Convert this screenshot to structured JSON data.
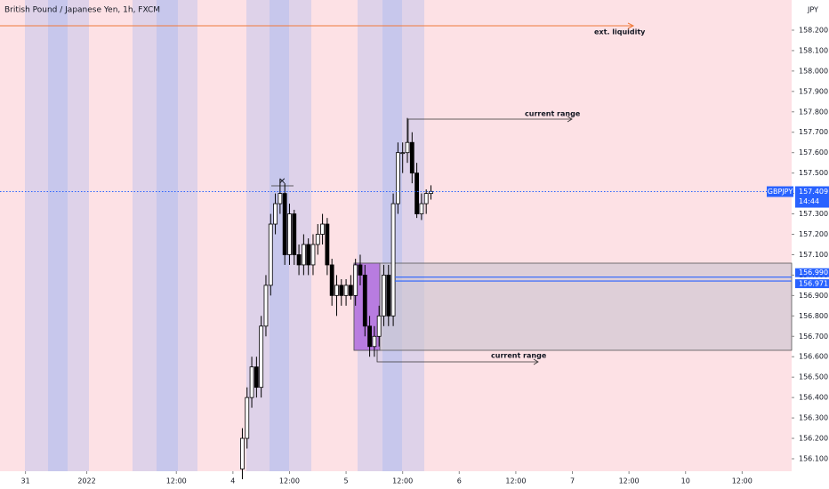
{
  "chart_data": {
    "type": "candlestick",
    "title": "British Pound / Japanese Yen, 1h, FXCM",
    "currency": "JPY",
    "symbol": "GBPJPY",
    "last_price": 157.409,
    "countdown": "14:44",
    "levels": [
      {
        "value": 156.99,
        "label": "156.990"
      },
      {
        "value": 156.971,
        "label": "156.971"
      }
    ],
    "annotations": [
      "ext. liquidity",
      "current range",
      "current range"
    ],
    "x": [
      2,
      3,
      4,
      5,
      6,
      7,
      8,
      9,
      10,
      11,
      12,
      13,
      14,
      15,
      16,
      17,
      18,
      19,
      20,
      21,
      22,
      23,
      24,
      25,
      26,
      27,
      28,
      29,
      30,
      31,
      32,
      33,
      34,
      35,
      36,
      37,
      38,
      39,
      40,
      41,
      42
    ],
    "open": [
      156.05,
      156.2,
      156.4,
      156.55,
      156.45,
      156.75,
      156.95,
      157.25,
      157.35,
      157.4,
      157.1,
      157.3,
      157.1,
      157.05,
      157.15,
      157.05,
      157.15,
      157.2,
      157.25,
      157.05,
      156.9,
      156.95,
      156.9,
      156.95,
      156.9,
      157.05,
      157.0,
      156.75,
      156.65,
      156.7,
      156.8,
      157.0,
      156.8,
      157.35,
      157.6,
      157.6,
      157.65,
      157.5,
      157.3,
      157.35,
      157.4
    ],
    "high": [
      156.25,
      156.45,
      156.6,
      156.6,
      156.8,
      157.0,
      157.3,
      157.4,
      157.47,
      157.45,
      157.35,
      157.32,
      157.15,
      157.2,
      157.18,
      157.2,
      157.25,
      157.3,
      157.28,
      157.08,
      157.0,
      156.98,
      156.98,
      157.0,
      157.08,
      157.1,
      157.05,
      156.8,
      156.75,
      156.85,
      157.05,
      157.05,
      157.4,
      157.65,
      157.65,
      157.77,
      157.7,
      157.55,
      157.4,
      157.42,
      157.44
    ],
    "low": [
      156.0,
      156.15,
      156.35,
      156.4,
      156.4,
      156.7,
      156.9,
      157.2,
      157.3,
      157.05,
      157.05,
      157.05,
      157.0,
      157.0,
      157.0,
      157.0,
      157.1,
      157.15,
      157.0,
      156.85,
      156.8,
      156.85,
      156.85,
      156.88,
      156.85,
      156.95,
      156.7,
      156.6,
      156.6,
      156.65,
      156.75,
      156.75,
      156.75,
      157.3,
      157.5,
      157.55,
      157.45,
      157.28,
      157.27,
      157.3,
      157.37
    ],
    "close": [
      156.2,
      156.4,
      156.55,
      156.45,
      156.75,
      156.95,
      157.25,
      157.35,
      157.4,
      157.1,
      157.3,
      157.1,
      157.05,
      157.15,
      157.05,
      157.15,
      157.2,
      157.25,
      157.05,
      156.9,
      156.95,
      156.9,
      156.95,
      156.9,
      157.05,
      157.0,
      156.75,
      156.65,
      156.7,
      156.8,
      157.0,
      156.8,
      157.35,
      157.6,
      157.6,
      157.65,
      157.5,
      157.3,
      157.35,
      157.4,
      157.41
    ],
    "up_color": "#ffffff",
    "down_color": "#000000",
    "xlim": [
      -49.4,
      118.5
    ],
    "xticks": [
      {
        "value": -44,
        "label": "31"
      },
      {
        "value": -31,
        "label": "2022"
      },
      {
        "value": -12,
        "label": "12:00"
      },
      {
        "value": 0,
        "label": "4"
      },
      {
        "value": 12,
        "label": "12:00"
      },
      {
        "value": 24,
        "label": "5"
      },
      {
        "value": 36,
        "label": "12:00"
      },
      {
        "value": 48,
        "label": "6"
      },
      {
        "value": 60,
        "label": "12:00"
      },
      {
        "value": 72,
        "label": "7"
      },
      {
        "value": 84,
        "label": "12:00"
      },
      {
        "value": 96,
        "label": "10"
      },
      {
        "value": 108,
        "label": "12:00"
      }
    ],
    "ylim": [
      156.039,
      158.348
    ],
    "yticks": [
      {
        "value": 156.1,
        "label": "156.100"
      },
      {
        "value": 156.2,
        "label": "156.200"
      },
      {
        "value": 156.3,
        "label": "156.300"
      },
      {
        "value": 156.4,
        "label": "156.400"
      },
      {
        "value": 156.5,
        "label": "156.500"
      },
      {
        "value": 156.6,
        "label": "156.600"
      },
      {
        "value": 156.7,
        "label": "156.700"
      },
      {
        "value": 156.8,
        "label": "156.800"
      },
      {
        "value": 156.9,
        "label": "156.900"
      },
      {
        "value": 157.0,
        "label": "157.000"
      },
      {
        "value": 157.1,
        "label": "157.100"
      },
      {
        "value": 157.2,
        "label": "157.200"
      },
      {
        "value": 157.3,
        "label": "157.300"
      },
      {
        "value": 157.4,
        "label": "157.400"
      },
      {
        "value": 157.5,
        "label": "157.500"
      },
      {
        "value": 157.6,
        "label": "157.600"
      },
      {
        "value": 157.7,
        "label": "157.700"
      },
      {
        "value": 157.8,
        "label": "157.800"
      },
      {
        "value": 157.9,
        "label": "157.900"
      },
      {
        "value": 158.0,
        "label": "158.000"
      },
      {
        "value": 158.1,
        "label": "158.100"
      },
      {
        "value": 158.2,
        "label": "158.200"
      }
    ]
  }
}
